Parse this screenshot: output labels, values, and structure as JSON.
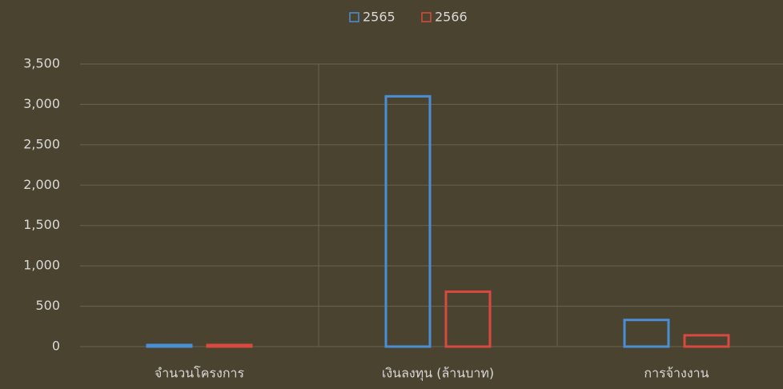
{
  "chart_data": {
    "type": "bar",
    "categories": [
      "จำนวนโครงการ",
      "เงินลงทุน (ล้านบาท)",
      "การจ้างงาน"
    ],
    "series": [
      {
        "name": "2565",
        "color": "#4a8fd6",
        "values": [
          20,
          3100,
          330
        ]
      },
      {
        "name": "2566",
        "color": "#d9493f",
        "values": [
          20,
          680,
          140
        ]
      }
    ],
    "ylim": [
      0,
      3500
    ],
    "yticks": [
      0,
      500,
      {
        "value": 1000,
        "label": "1,000"
      },
      {
        "value": 1500,
        "label": "1,500"
      },
      {
        "value": 2000,
        "label": "2,000"
      },
      {
        "value": 2500,
        "label": "2,500"
      },
      {
        "value": 3000,
        "label": "3,000"
      },
      {
        "value": 3500,
        "label": "3,500"
      }
    ],
    "grid": true
  }
}
